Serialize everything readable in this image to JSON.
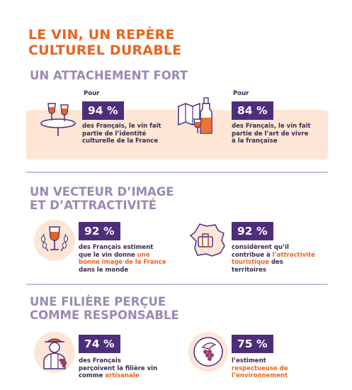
{
  "title": {
    "line1": "LE VIN, UN REPÈRE",
    "line2": "CULTUREL DURABLE"
  },
  "colors": {
    "orange": "#e8641f",
    "purple": "#4e2e7a",
    "lavender": "#9a8ab3",
    "peach": "#fde6d6"
  },
  "sections": {
    "s1": {
      "title": "UN ATTACHEMENT FORT",
      "stat1": {
        "icon": "wine-glasses-table-icon",
        "pour": "Pour",
        "value": "94 %",
        "line1": "des Français, le vin fait",
        "line2": "partie de l’identité",
        "line3": "culturelle de la France"
      },
      "stat2": {
        "icon": "map-wine-bottle-icon",
        "pour": "Pour",
        "value": "84 %",
        "line1": "des Français, le vin fait",
        "line2": "partie de l’art de vivre",
        "line3": "à la française"
      }
    },
    "s2": {
      "title_line1": "UN VECTEUR D’IMAGE",
      "title_line2": "ET D’ATTRACTIVITÉ",
      "stat1": {
        "icon": "wine-glass-laurel-icon",
        "value": "92 %",
        "line1": "des Français estiment",
        "line2a": "que le vin donne ",
        "line2b": "une",
        "line3": "bonne image de la France",
        "line4": "dans le monde"
      },
      "stat2": {
        "icon": "france-map-suitcase-icon",
        "value": "92 %",
        "line1": "considèrent qu’il",
        "line2a": "contribue à ",
        "line2b": "l’attractivité",
        "line3a": "touristique",
        "line3b": " des",
        "line4": "territoires"
      }
    },
    "s3": {
      "title_line1": "UNE FILIÈRE PERÇUE",
      "title_line2": "COMME RESPONSABLE",
      "stat1": {
        "icon": "winegrower-icon",
        "value": "74 %",
        "line1": "des Français",
        "line2": "perçoivent la filière vin",
        "line3a": "comme ",
        "line3b": "artisanale"
      },
      "stat2": {
        "icon": "grapes-leaf-icon",
        "value": "75 %",
        "line1": "l’estiment",
        "line2": "respectueuse de",
        "line3": "l’environnement"
      }
    }
  }
}
